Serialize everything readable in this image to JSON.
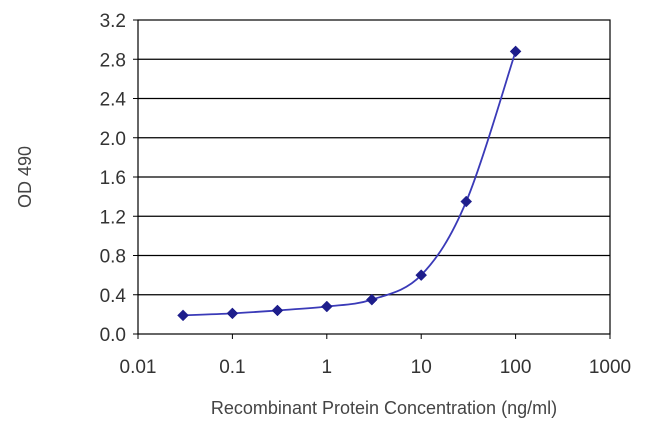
{
  "chart_data": {
    "type": "line",
    "x_scale": "log",
    "xlabel": "Recombinant Protein Concentration (ng/ml)",
    "ylabel": "OD 490",
    "xlim": [
      0.01,
      1000
    ],
    "ylim": [
      0.0,
      3.2
    ],
    "x_ticks": [
      "0.01",
      "0.1",
      "1",
      "10",
      "100",
      "1000"
    ],
    "y_ticks": [
      "0.0",
      "0.4",
      "0.8",
      "1.2",
      "1.6",
      "2.0",
      "2.4",
      "2.8",
      "3.2"
    ],
    "grid": "horizontal",
    "legend": "none",
    "series": [
      {
        "x": [
          0.03,
          0.1,
          0.3,
          1,
          3,
          10,
          30,
          100
        ],
        "y": [
          0.19,
          0.21,
          0.24,
          0.28,
          0.35,
          0.6,
          1.35,
          2.88
        ]
      }
    ],
    "colors": {
      "line": "#3a3ab8",
      "marker": "#1e1e8c",
      "plot_bg": "#ffffff",
      "grid": "#000000"
    }
  }
}
